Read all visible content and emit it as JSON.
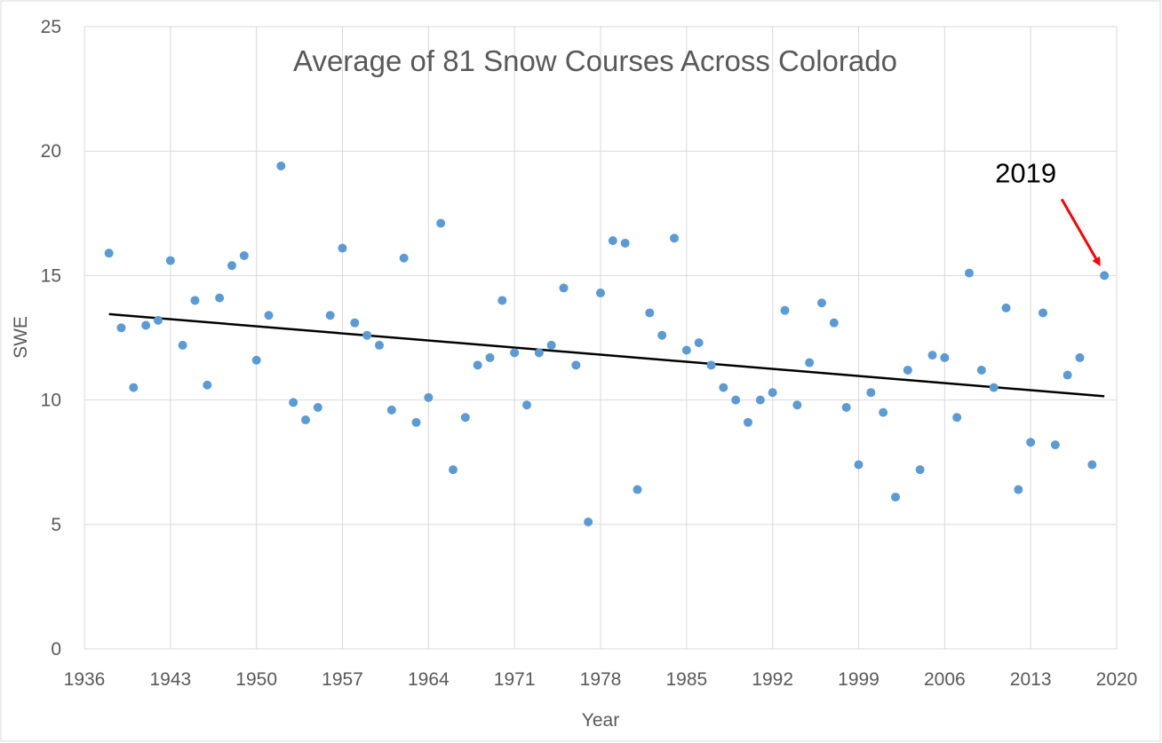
{
  "chart_data": {
    "type": "scatter",
    "title": "Average of 81 Snow Courses Across Colorado",
    "xlabel": "Year",
    "ylabel": "SWE",
    "xlim": [
      1936,
      2020
    ],
    "ylim": [
      0,
      25
    ],
    "x_ticks": [
      1936,
      1943,
      1950,
      1957,
      1964,
      1971,
      1978,
      1985,
      1992,
      1999,
      2006,
      2013,
      2020
    ],
    "y_ticks": [
      0,
      5,
      10,
      15,
      20,
      25
    ],
    "grid": true,
    "legend": "none",
    "colors": {
      "points": "#5b9bd5",
      "trendline": "#000000",
      "grid": "#d9d9d9",
      "annotation_arrow": "#ff0000",
      "text": "#595959"
    },
    "series": [
      {
        "x": [
          1938,
          1939,
          1940,
          1941,
          1942,
          1943,
          1944,
          1945,
          1946,
          1947,
          1948,
          1949,
          1950,
          1951,
          1952,
          1953,
          1954,
          1955,
          1956,
          1957,
          1958,
          1959,
          1960,
          1961,
          1962,
          1963,
          1964,
          1965,
          1966,
          1967,
          1968,
          1969,
          1970,
          1971,
          1972,
          1973,
          1974,
          1975,
          1976,
          1977,
          1978,
          1979,
          1980,
          1981,
          1982,
          1983,
          1984,
          1985,
          1986,
          1987,
          1988,
          1989,
          1990,
          1991,
          1992,
          1993,
          1994,
          1995,
          1996,
          1997,
          1998,
          1999,
          2000,
          2001,
          2002,
          2003,
          2004,
          2005,
          2006,
          2007,
          2008,
          2009,
          2010,
          2011,
          2012,
          2013,
          2014,
          2015,
          2016,
          2017,
          2018,
          2019
        ],
        "y": [
          15.9,
          12.9,
          10.5,
          13.0,
          13.2,
          15.6,
          12.2,
          14.0,
          10.6,
          14.1,
          15.4,
          15.8,
          11.6,
          13.4,
          19.4,
          9.9,
          9.2,
          9.7,
          13.4,
          16.1,
          13.1,
          12.6,
          12.2,
          9.6,
          15.7,
          9.1,
          10.1,
          17.1,
          7.2,
          9.3,
          11.4,
          11.7,
          14.0,
          11.9,
          9.8,
          11.9,
          12.2,
          14.5,
          11.4,
          5.1,
          14.3,
          16.4,
          16.3,
          6.4,
          13.5,
          12.6,
          16.5,
          12.0,
          12.3,
          11.4,
          10.5,
          10.0,
          9.1,
          10.0,
          10.3,
          13.6,
          9.8,
          11.5,
          13.9,
          13.1,
          9.7,
          7.4,
          10.3,
          9.5,
          6.1,
          11.2,
          7.2,
          11.8,
          11.7,
          9.3,
          15.1,
          11.2,
          10.5,
          13.7,
          6.4,
          8.3,
          13.5,
          8.2,
          11.0,
          11.7,
          7.4,
          15.0
        ]
      }
    ],
    "trendline": {
      "x": [
        1938,
        2019
      ],
      "y": [
        13.45,
        10.15
      ]
    },
    "annotations": [
      {
        "text": "2019",
        "x": 2019,
        "y": 15.0
      }
    ]
  }
}
